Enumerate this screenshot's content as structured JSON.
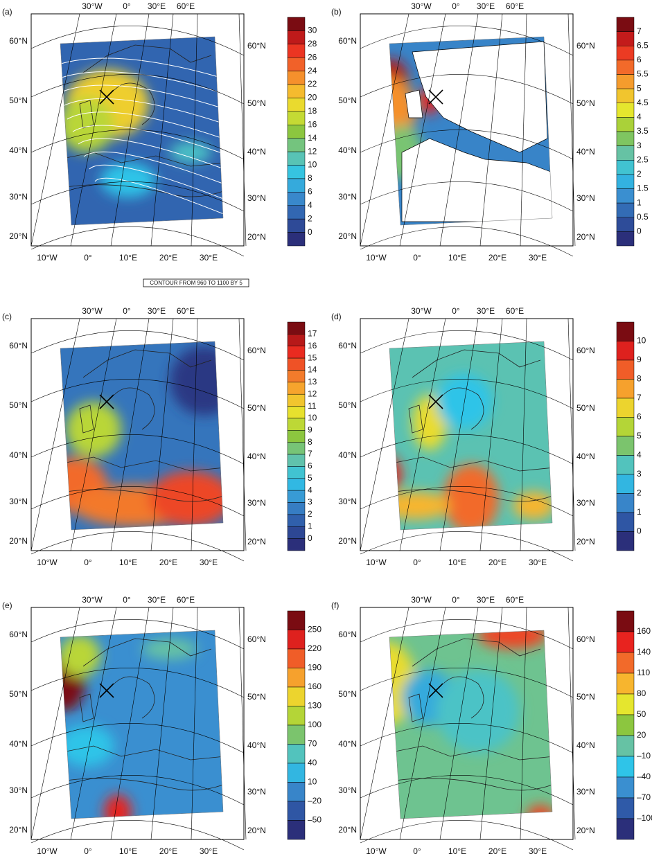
{
  "contour_note": "CONTOUR FROM 960 TO 1100 BY 5",
  "colormap": [
    "#2b2f7a",
    "#2f5aa8",
    "#3a8fd0",
    "#2fc4e8",
    "#66c2a4",
    "#8cc63f",
    "#e5e62e",
    "#f7b52e",
    "#f26a2a",
    "#e8231f",
    "#7a0c12"
  ],
  "top_lon_labels": [
    "30°W",
    "0°",
    "30°E",
    "60°E"
  ],
  "bottom_lon_labels": [
    "10°W",
    "0°",
    "10°E",
    "20°E",
    "30°E"
  ],
  "lat_labels": [
    "60°N",
    "50°N",
    "40°N",
    "30°N",
    "20°N"
  ],
  "panels": [
    {
      "label": "(a)",
      "colorbar": [
        "30",
        "28",
        "26",
        "24",
        "22",
        "20",
        "18",
        "16",
        "14",
        "12",
        "10",
        "8",
        "6",
        "4",
        "2",
        "0"
      ]
    },
    {
      "label": "(b)",
      "colorbar": [
        "7",
        "6.5",
        "6",
        "5.5",
        "5",
        "4.5",
        "4",
        "3.5",
        "3",
        "2.5",
        "2",
        "1.5",
        "1",
        "0.5",
        "0"
      ]
    },
    {
      "label": "(c)",
      "colorbar": [
        "17",
        "16",
        "15",
        "14",
        "13",
        "12",
        "11",
        "10",
        "9",
        "8",
        "7",
        "6",
        "5",
        "4",
        "3",
        "2",
        "1",
        "0"
      ]
    },
    {
      "label": "(d)",
      "colorbar": [
        "10",
        "9",
        "8",
        "7",
        "6",
        "5",
        "4",
        "3",
        "2",
        "1",
        "0"
      ]
    },
    {
      "label": "(e)",
      "colorbar": [
        "250",
        "220",
        "190",
        "160",
        "130",
        "100",
        "70",
        "40",
        "10",
        "–20",
        "–50"
      ]
    },
    {
      "label": "(f)",
      "colorbar": [
        "160",
        "140",
        "110",
        "80",
        "50",
        "20",
        "–10",
        "–40",
        "–70",
        "–100"
      ]
    }
  ]
}
